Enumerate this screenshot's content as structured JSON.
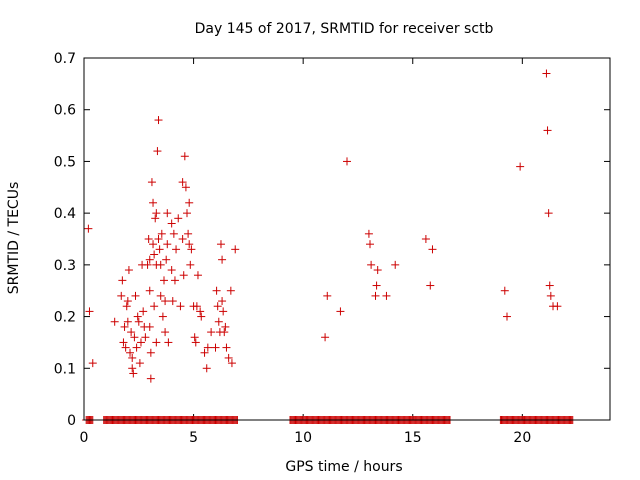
{
  "chart_data": {
    "type": "scatter",
    "title": "Day 145 of 2017, SRMTID for receiver sctb",
    "xlabel": "GPS time / hours",
    "ylabel": "SRMTID / TECUs",
    "xlim": [
      0,
      24
    ],
    "ylim": [
      0,
      0.7
    ],
    "x_ticks": [
      0,
      5,
      10,
      15,
      20
    ],
    "y_ticks": [
      0,
      0.1,
      0.2,
      0.3,
      0.4,
      0.5,
      0.6,
      0.7
    ],
    "x_tick_labels": [
      "0",
      "5",
      "10",
      "15",
      "20"
    ],
    "y_tick_labels": [
      "0",
      "0.1",
      "0.2",
      "0.3",
      "0.4",
      "0.5",
      "0.6",
      "0.7"
    ],
    "marker": "+",
    "marker_color": "#cc0000",
    "zero_runs": [
      [
        0.1,
        0.4
      ],
      [
        0.9,
        7.0
      ],
      [
        9.4,
        16.7
      ],
      [
        19.0,
        22.3
      ]
    ],
    "series": [
      {
        "name": "SRMTID",
        "points": [
          [
            0.2,
            0.37
          ],
          [
            0.25,
            0.21
          ],
          [
            0.4,
            0.11
          ],
          [
            1.4,
            0.19
          ],
          [
            1.7,
            0.24
          ],
          [
            1.75,
            0.27
          ],
          [
            1.8,
            0.15
          ],
          [
            1.85,
            0.18
          ],
          [
            1.9,
            0.14
          ],
          [
            1.95,
            0.22
          ],
          [
            2.0,
            0.19
          ],
          [
            2.05,
            0.29
          ],
          [
            2.0,
            0.23
          ],
          [
            2.1,
            0.13
          ],
          [
            2.15,
            0.17
          ],
          [
            2.2,
            0.12
          ],
          [
            2.2,
            0.1
          ],
          [
            2.25,
            0.09
          ],
          [
            2.3,
            0.16
          ],
          [
            2.35,
            0.24
          ],
          [
            2.4,
            0.14
          ],
          [
            2.45,
            0.2
          ],
          [
            2.5,
            0.19
          ],
          [
            2.55,
            0.11
          ],
          [
            2.6,
            0.15
          ],
          [
            2.65,
            0.3
          ],
          [
            2.7,
            0.21
          ],
          [
            2.75,
            0.18
          ],
          [
            2.8,
            0.16
          ],
          [
            2.9,
            0.3
          ],
          [
            2.95,
            0.35
          ],
          [
            3.0,
            0.31
          ],
          [
            3.0,
            0.25
          ],
          [
            3.0,
            0.18
          ],
          [
            3.05,
            0.13
          ],
          [
            3.05,
            0.08
          ],
          [
            3.1,
            0.46
          ],
          [
            3.15,
            0.42
          ],
          [
            3.15,
            0.34
          ],
          [
            3.2,
            0.32
          ],
          [
            3.2,
            0.22
          ],
          [
            3.25,
            0.39
          ],
          [
            3.3,
            0.4
          ],
          [
            3.3,
            0.3
          ],
          [
            3.3,
            0.15
          ],
          [
            3.35,
            0.52
          ],
          [
            3.4,
            0.58
          ],
          [
            3.4,
            0.35
          ],
          [
            3.45,
            0.33
          ],
          [
            3.5,
            0.24
          ],
          [
            3.5,
            0.3
          ],
          [
            3.55,
            0.36
          ],
          [
            3.6,
            0.2
          ],
          [
            3.65,
            0.27
          ],
          [
            3.7,
            0.23
          ],
          [
            3.7,
            0.17
          ],
          [
            3.75,
            0.31
          ],
          [
            3.8,
            0.4
          ],
          [
            3.8,
            0.34
          ],
          [
            3.85,
            0.15
          ],
          [
            4.0,
            0.38
          ],
          [
            4.0,
            0.29
          ],
          [
            4.05,
            0.23
          ],
          [
            4.1,
            0.36
          ],
          [
            4.15,
            0.27
          ],
          [
            4.2,
            0.33
          ],
          [
            4.3,
            0.39
          ],
          [
            4.4,
            0.22
          ],
          [
            4.5,
            0.46
          ],
          [
            4.5,
            0.35
          ],
          [
            4.55,
            0.28
          ],
          [
            4.6,
            0.51
          ],
          [
            4.65,
            0.45
          ],
          [
            4.7,
            0.4
          ],
          [
            4.75,
            0.36
          ],
          [
            4.8,
            0.42
          ],
          [
            4.8,
            0.34
          ],
          [
            4.85,
            0.3
          ],
          [
            4.9,
            0.33
          ],
          [
            5.0,
            0.22
          ],
          [
            5.05,
            0.16
          ],
          [
            5.1,
            0.15
          ],
          [
            5.15,
            0.22
          ],
          [
            5.2,
            0.28
          ],
          [
            5.3,
            0.21
          ],
          [
            5.35,
            0.2
          ],
          [
            5.5,
            0.13
          ],
          [
            5.6,
            0.1
          ],
          [
            5.65,
            0.14
          ],
          [
            5.8,
            0.17
          ],
          [
            6.0,
            0.14
          ],
          [
            6.05,
            0.25
          ],
          [
            6.1,
            0.22
          ],
          [
            6.15,
            0.19
          ],
          [
            6.2,
            0.17
          ],
          [
            6.25,
            0.34
          ],
          [
            6.3,
            0.31
          ],
          [
            6.3,
            0.23
          ],
          [
            6.35,
            0.21
          ],
          [
            6.4,
            0.17
          ],
          [
            6.45,
            0.18
          ],
          [
            6.5,
            0.14
          ],
          [
            6.6,
            0.12
          ],
          [
            6.7,
            0.25
          ],
          [
            6.75,
            0.11
          ],
          [
            6.9,
            0.33
          ],
          [
            11.0,
            0.16
          ],
          [
            11.1,
            0.24
          ],
          [
            11.7,
            0.21
          ],
          [
            12.0,
            0.5
          ],
          [
            13.0,
            0.36
          ],
          [
            13.05,
            0.34
          ],
          [
            13.1,
            0.3
          ],
          [
            13.3,
            0.24
          ],
          [
            13.35,
            0.26
          ],
          [
            13.4,
            0.29
          ],
          [
            13.8,
            0.24
          ],
          [
            14.2,
            0.3
          ],
          [
            15.6,
            0.35
          ],
          [
            15.8,
            0.26
          ],
          [
            15.9,
            0.33
          ],
          [
            19.2,
            0.25
          ],
          [
            19.3,
            0.2
          ],
          [
            19.9,
            0.49
          ],
          [
            21.1,
            0.67
          ],
          [
            21.15,
            0.56
          ],
          [
            21.2,
            0.4
          ],
          [
            21.25,
            0.26
          ],
          [
            21.3,
            0.24
          ],
          [
            21.4,
            0.22
          ],
          [
            21.6,
            0.22
          ]
        ]
      }
    ]
  }
}
